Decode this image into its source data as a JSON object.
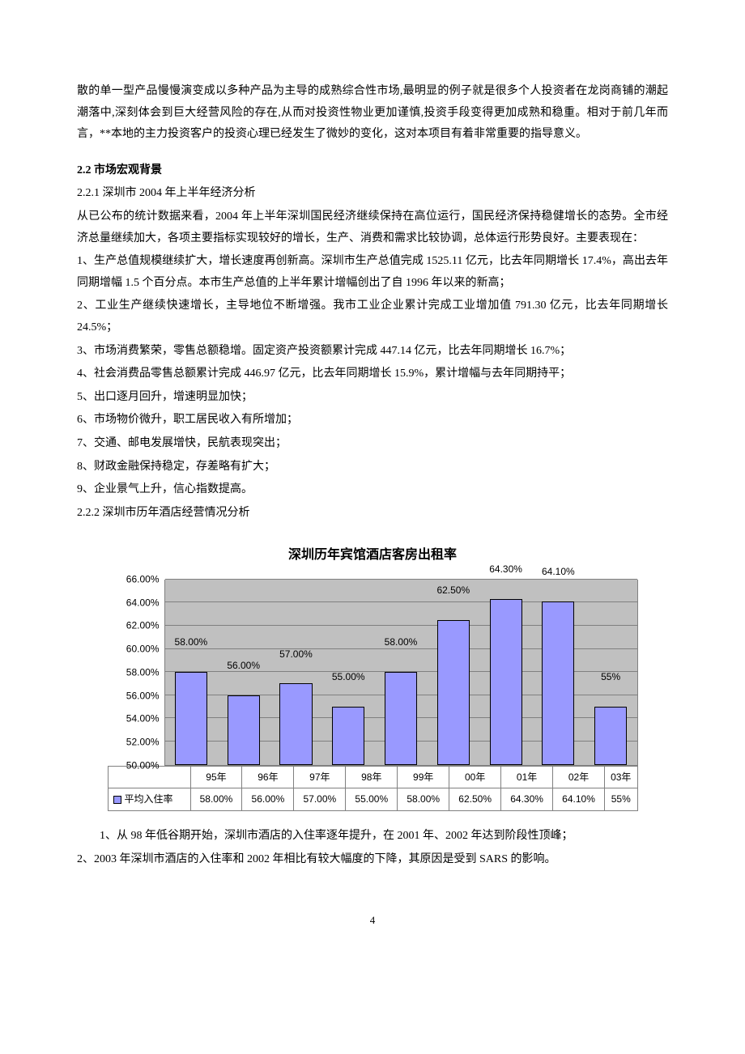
{
  "intro_paragraph": "散的单一型产品慢慢演变成以多种产品为主导的成熟综合性市场,最明显的例子就是很多个人投资者在龙岗商铺的潮起潮落中,深刻体会到巨大经营风险的存在,从而对投资性物业更加谨慎,投资手段变得更加成熟和稳重。相对于前几年而言，**本地的主力投资客户的投资心理已经发生了微妙的变化，这对本项目有着非常重要的指导意义。",
  "section_22": "2.2 市场宏观背景",
  "sub_221": "2.2.1 深圳市 2004 年上半年经济分析",
  "p221_intro": "从已公布的统计数据来看，2004 年上半年深圳国民经济继续保持在高位运行，国民经济保持稳健增长的态势。全市经济总量继续加大，各项主要指标实现较好的增长，生产、消费和需求比较协调，总体运行形势良好。主要表现在：",
  "items_221": [
    "1、生产总值规模继续扩大，增长速度再创新高。深圳市生产总值完成 1525.11 亿元，比去年同期增长 17.4%，高出去年同期增幅 1.5 个百分点。本市生产总值的上半年累计增幅创出了自 1996 年以来的新高；",
    "2、工业生产继续快速增长，主导地位不断增强。我市工业企业累计完成工业增加值 791.30 亿元，比去年同期增长 24.5%；",
    "3、市场消费繁荣，零售总额稳增。固定资产投资额累计完成 447.14 亿元，比去年同期增长 16.7%；",
    "4、社会消费品零售总额累计完成 446.97 亿元，比去年同期增长 15.9%，累计增幅与去年同期持平；",
    "5、出口逐月回升，增速明显加快；",
    "6、市场物价微升，职工居民收入有所增加；",
    "7、交通、邮电发展增快，民航表现突出；",
    "8、财政金融保持稳定，存差略有扩大；",
    "9、企业景气上升，信心指数提高。"
  ],
  "sub_222": "2.2.2 深圳市历年酒店经营情况分析",
  "chart": {
    "type": "bar",
    "title": "深圳历年宾馆酒店客房出租率",
    "categories": [
      "95年",
      "96年",
      "97年",
      "98年",
      "99年",
      "00年",
      "01年",
      "02年",
      "03年"
    ],
    "values": [
      58.0,
      56.0,
      57.0,
      55.0,
      58.0,
      62.5,
      64.3,
      64.1,
      55.0
    ],
    "value_labels": [
      "58.00%",
      "56.00%",
      "57.00%",
      "55.00%",
      "58.00%",
      "62.50%",
      "64.30%",
      "64.10%",
      "55%"
    ],
    "legend_label": "平均入住率",
    "bar_color": "#9999ff",
    "bar_border": "#000000",
    "grid_color": "#808080",
    "background_color": "#c0c0c0",
    "ylim_min": 50.0,
    "ylim_max": 66.0,
    "ytick_step": 2.0,
    "ytick_labels": [
      "50.00%",
      "52.00%",
      "54.00%",
      "56.00%",
      "58.00%",
      "60.00%",
      "62.00%",
      "64.00%",
      "66.00%"
    ],
    "label_fontsize": 12,
    "title_fontsize": 16
  },
  "post_chart": [
    "　　1、从 98 年低谷期开始，深圳市酒店的入住率逐年提升，在 2001 年、2002 年达到阶段性顶峰；",
    "2、2003 年深圳市酒店的入住率和 2002 年相比有较大幅度的下降，其原因是受到 SARS 的影响。"
  ],
  "page_number": "4"
}
